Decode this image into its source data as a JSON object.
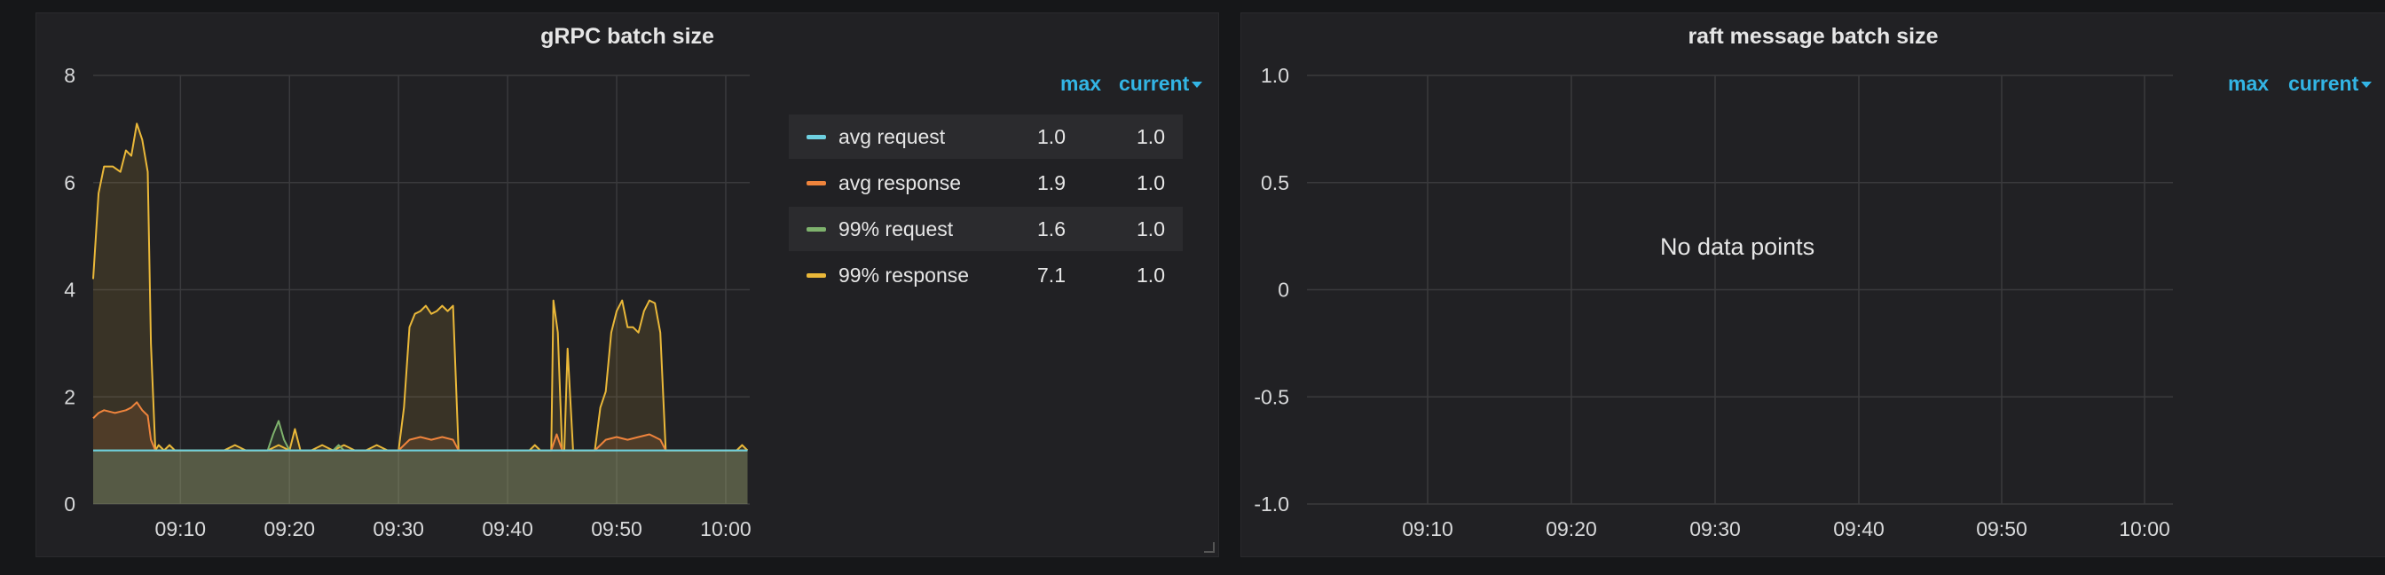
{
  "panels": {
    "left": {
      "title": "gRPC batch size"
    },
    "right": {
      "title": "raft message batch size",
      "no_data": "No data points"
    }
  },
  "legend": {
    "max_header": "max",
    "current_header": "current",
    "items": [
      {
        "name": "avg request",
        "max": "1.0",
        "current": "1.0",
        "color": "#6ed0e0"
      },
      {
        "name": "avg response",
        "max": "1.9",
        "current": "1.0",
        "color": "#ef843c"
      },
      {
        "name": "99% request",
        "max": "1.6",
        "current": "1.0",
        "color": "#7eb26d"
      },
      {
        "name": "99% response",
        "max": "7.1",
        "current": "1.0",
        "color": "#eab839"
      }
    ]
  },
  "chart_data": [
    {
      "type": "area",
      "title": "gRPC batch size",
      "xlabel": "",
      "ylabel": "",
      "x_ticks": [
        "09:10",
        "09:20",
        "09:30",
        "09:40",
        "09:50",
        "10:00"
      ],
      "x_tick_minutes": [
        10,
        20,
        30,
        40,
        50,
        60
      ],
      "y_ticks": [
        "0",
        "2",
        "4",
        "6",
        "8"
      ],
      "y_tick_values": [
        0,
        2,
        4,
        6,
        8
      ],
      "xlim": [
        2,
        62.2
      ],
      "ylim": [
        0,
        8
      ],
      "grid": true,
      "legend_position": "right",
      "series": [
        {
          "name": "99% response",
          "color": "#eab839",
          "x": [
            2,
            2.5,
            3,
            3.8,
            4.5,
            5,
            5.5,
            6,
            6.5,
            7,
            7.3,
            7.7,
            8,
            8.5,
            9,
            9.5,
            10,
            12,
            14,
            15,
            16,
            18,
            19,
            20,
            20.5,
            21,
            22,
            23,
            24,
            25,
            26,
            27,
            28,
            29,
            30,
            30.5,
            31,
            31.5,
            32,
            32.5,
            33,
            33.5,
            34,
            34.5,
            35,
            35.5,
            36,
            37,
            38,
            40,
            42,
            42.5,
            43,
            44,
            44.2,
            44.6,
            45,
            45.2,
            45.5,
            46,
            47,
            48,
            48.5,
            49,
            49.5,
            50,
            50.5,
            51,
            51.5,
            52,
            52.5,
            53,
            53.5,
            54,
            54.5,
            55,
            55.5,
            56,
            57,
            58,
            59,
            60,
            61,
            61.5,
            62
          ],
          "y": [
            4.2,
            5.8,
            6.3,
            6.3,
            6.2,
            6.6,
            6.5,
            7.1,
            6.8,
            6.2,
            3.0,
            1.0,
            1.1,
            1.0,
            1.1,
            1.0,
            1.0,
            1.0,
            1.0,
            1.1,
            1.0,
            1.0,
            1.1,
            1.0,
            1.4,
            1.0,
            1.0,
            1.1,
            1.0,
            1.1,
            1.0,
            1.0,
            1.1,
            1.0,
            1.0,
            1.8,
            3.3,
            3.55,
            3.6,
            3.7,
            3.55,
            3.6,
            3.7,
            3.6,
            3.7,
            1.0,
            1.0,
            1.0,
            1.0,
            1.0,
            1.0,
            1.1,
            1.0,
            1.0,
            3.8,
            3.2,
            1.0,
            1.0,
            2.9,
            1.0,
            1.0,
            1.0,
            1.8,
            2.1,
            3.2,
            3.6,
            3.8,
            3.3,
            3.3,
            3.2,
            3.6,
            3.8,
            3.75,
            3.2,
            1.0,
            1.0,
            1.0,
            1.0,
            1.0,
            1.0,
            1.0,
            1.0,
            1.0,
            1.1,
            1.0
          ]
        },
        {
          "name": "avg response",
          "color": "#ef843c",
          "x": [
            2,
            2.5,
            3,
            4,
            5,
            5.5,
            6,
            6.5,
            7,
            7.3,
            7.7,
            8,
            10,
            20,
            30,
            30.5,
            31,
            32,
            33,
            34,
            35,
            35.5,
            36,
            42,
            43,
            44,
            44.5,
            45,
            48,
            48.5,
            49,
            50,
            51,
            52,
            53,
            53.5,
            54,
            54.5,
            55,
            62
          ],
          "y": [
            1.6,
            1.7,
            1.75,
            1.7,
            1.75,
            1.8,
            1.9,
            1.75,
            1.65,
            1.2,
            1.0,
            1.0,
            1.0,
            1.0,
            1.0,
            1.1,
            1.2,
            1.25,
            1.2,
            1.25,
            1.2,
            1.0,
            1.0,
            1.0,
            1.0,
            1.0,
            1.3,
            1.0,
            1.0,
            1.1,
            1.2,
            1.25,
            1.2,
            1.25,
            1.3,
            1.25,
            1.2,
            1.0,
            1.0,
            1.0
          ]
        },
        {
          "name": "99% request",
          "color": "#7eb26d",
          "x": [
            2,
            18,
            18.5,
            19,
            19.5,
            20,
            24,
            24.5,
            25,
            30,
            62
          ],
          "y": [
            1.0,
            1.0,
            1.3,
            1.55,
            1.2,
            1.0,
            1.0,
            1.1,
            1.0,
            1.0,
            1.0
          ]
        },
        {
          "name": "avg request",
          "color": "#6ed0e0",
          "x": [
            2,
            62
          ],
          "y": [
            1.0,
            1.0
          ]
        }
      ]
    },
    {
      "type": "line",
      "title": "raft message batch size",
      "x_ticks": [
        "09:10",
        "09:20",
        "09:30",
        "09:40",
        "09:50",
        "10:00"
      ],
      "y_ticks": [
        "1.0",
        "0.5",
        "0",
        "-0.5",
        "-1.0"
      ],
      "ylim": [
        -1.0,
        1.0
      ],
      "grid": true,
      "series": []
    }
  ]
}
